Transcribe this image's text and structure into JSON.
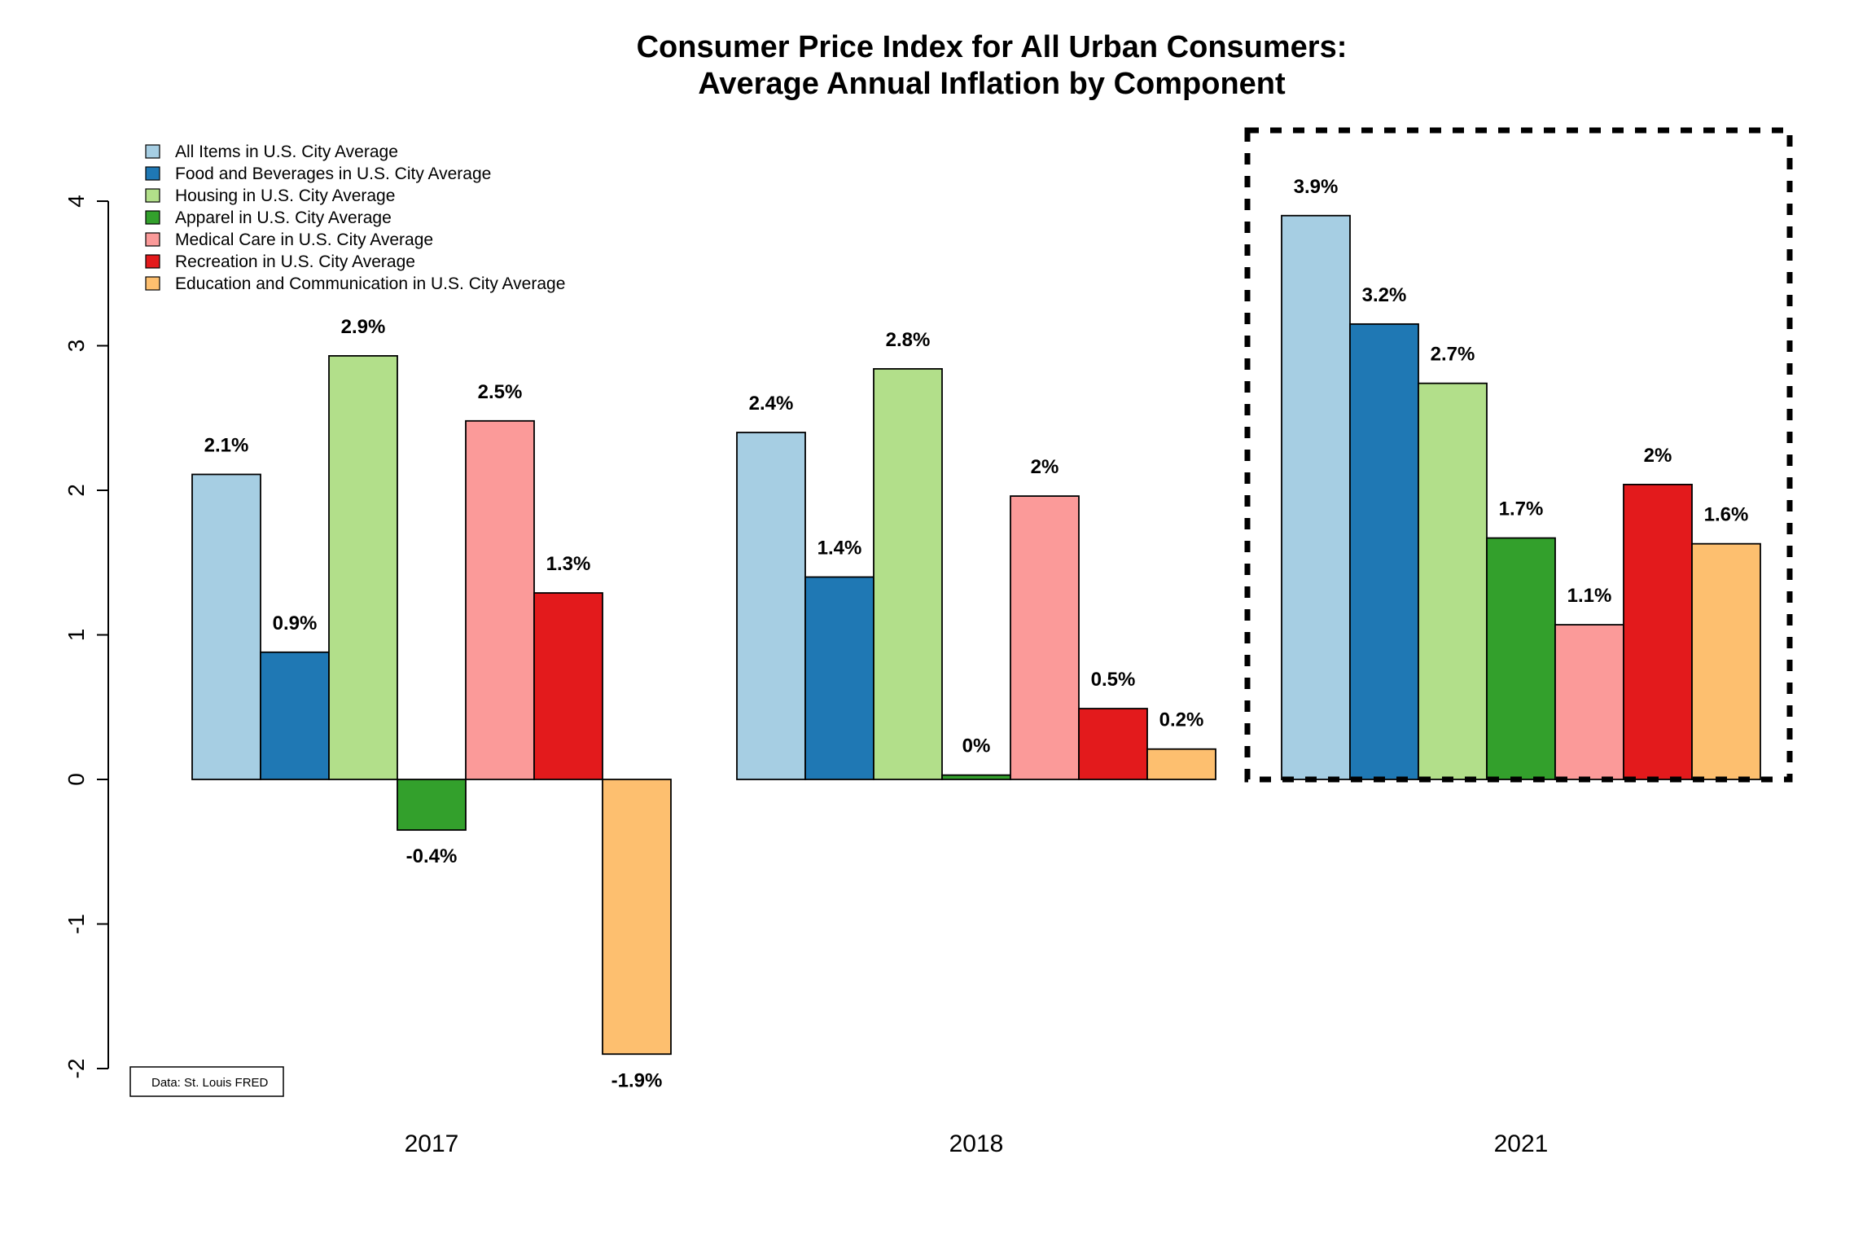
{
  "chart_data": {
    "type": "bar",
    "title": "Consumer Price Index for All Urban Consumers:",
    "subtitle": "Average Annual Inflation by Component",
    "xlabel": "",
    "ylabel": "",
    "categories": [
      "2017",
      "2018",
      "2021"
    ],
    "ylim": [
      -2,
      4
    ],
    "yticks": [
      -2,
      -1,
      0,
      1,
      2,
      3,
      4
    ],
    "legend_position": "top-left",
    "grid": false,
    "highlighted_category": "2021",
    "series": [
      {
        "name": "All Items in U.S. City Average",
        "color": "#A6CEE3",
        "values": [
          2.11,
          2.4,
          3.9
        ],
        "labels": [
          "2.1%",
          "2.4%",
          "3.9%"
        ]
      },
      {
        "name": "Food and Beverages in U.S. City Average",
        "color": "#1F78B4",
        "values": [
          0.88,
          1.4,
          3.15
        ],
        "labels": [
          "0.9%",
          "1.4%",
          "3.2%"
        ]
      },
      {
        "name": "Housing in U.S. City Average",
        "color": "#B2DF8A",
        "values": [
          2.93,
          2.84,
          2.74
        ],
        "labels": [
          "2.9%",
          "2.8%",
          "2.7%"
        ]
      },
      {
        "name": "Apparel in U.S. City Average",
        "color": "#33A02C",
        "values": [
          -0.35,
          0.03,
          1.67
        ],
        "labels": [
          "-0.4%",
          "0%",
          "1.7%"
        ]
      },
      {
        "name": "Medical Care in U.S. City Average",
        "color": "#FB9A99",
        "values": [
          2.48,
          1.96,
          1.07
        ],
        "labels": [
          "2.5%",
          "2%",
          "1.1%"
        ]
      },
      {
        "name": "Recreation in U.S. City Average",
        "color": "#E31A1C",
        "values": [
          1.29,
          0.49,
          2.04
        ],
        "labels": [
          "1.3%",
          "0.5%",
          "2%"
        ]
      },
      {
        "name": "Education and Communication in U.S. City Average",
        "color": "#FDBF6F",
        "values": [
          -1.9,
          0.21,
          1.63
        ],
        "labels": [
          "-1.9%",
          "0.2%",
          "1.6%"
        ]
      }
    ],
    "source_note": "Data: St. Louis FRED"
  }
}
